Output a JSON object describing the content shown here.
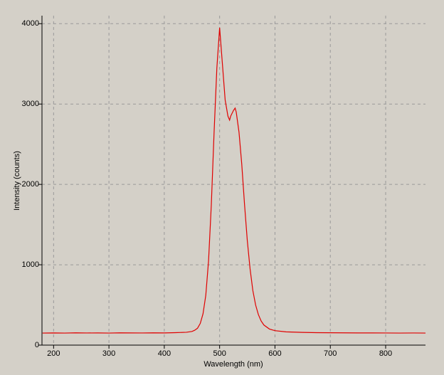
{
  "chart_data": {
    "type": "line",
    "xlabel": "Wavelength (nm)",
    "ylabel": "Intensity (counts)",
    "x": [
      180,
      200,
      220,
      240,
      260,
      280,
      300,
      320,
      340,
      360,
      380,
      400,
      420,
      440,
      450,
      455,
      460,
      465,
      470,
      475,
      480,
      485,
      490,
      495,
      500,
      505,
      510,
      515,
      518,
      520,
      525,
      528,
      530,
      535,
      540,
      545,
      550,
      555,
      560,
      565,
      570,
      575,
      580,
      590,
      600,
      620,
      650,
      675,
      700,
      725,
      750,
      775,
      800,
      825,
      850,
      872
    ],
    "values": [
      150,
      152,
      150,
      153,
      151,
      152,
      150,
      153,
      152,
      151,
      153,
      152,
      155,
      160,
      170,
      185,
      210,
      270,
      390,
      620,
      1050,
      1750,
      2650,
      3450,
      3950,
      3500,
      3050,
      2850,
      2800,
      2850,
      2920,
      2950,
      2900,
      2650,
      2250,
      1750,
      1300,
      950,
      680,
      500,
      380,
      300,
      250,
      200,
      180,
      165,
      158,
      155,
      154,
      153,
      152,
      152,
      151,
      150,
      151,
      150
    ],
    "color": "#e00000",
    "xlim": [
      179,
      872
    ],
    "ylim": [
      0,
      4100
    ],
    "xticks": [
      200,
      300,
      400,
      500,
      600,
      700,
      800
    ],
    "yticks": [
      0,
      1000,
      2000,
      3000,
      4000
    ],
    "grid": true
  }
}
